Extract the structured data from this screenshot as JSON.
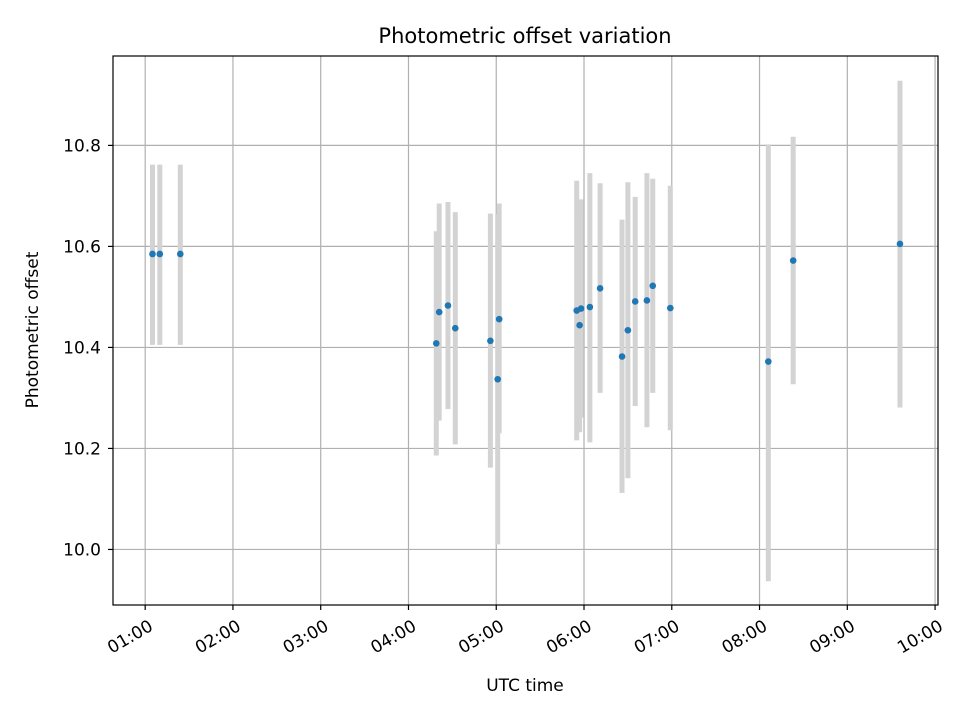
{
  "chart_data": {
    "type": "scatter",
    "title": "Photometric offset variation",
    "xlabel": "UTC time",
    "ylabel": "Photometric offset",
    "x_tick_labels": [
      "01:00",
      "02:00",
      "03:00",
      "04:00",
      "05:00",
      "06:00",
      "07:00",
      "08:00",
      "09:00",
      "10:00"
    ],
    "y_tick_labels": [
      "10.0",
      "10.2",
      "10.4",
      "10.6",
      "10.8"
    ],
    "x_ticks": [
      "01:00",
      "02:00",
      "03:00",
      "04:00",
      "05:00",
      "06:00",
      "07:00",
      "08:00",
      "09:00",
      "10:00"
    ],
    "y_ticks": [
      10.0,
      10.2,
      10.4,
      10.6,
      10.8
    ],
    "xlim": [
      "00:38",
      "10:02"
    ],
    "ylim": [
      9.89,
      10.977
    ],
    "grid": true,
    "marker_color": "#1f77b4",
    "errorbar_color": "#d3d3d3",
    "points": [
      {
        "x": "01:05",
        "y": 10.585,
        "low": 10.405,
        "high": 10.762
      },
      {
        "x": "01:10",
        "y": 10.585,
        "low": 10.405,
        "high": 10.762
      },
      {
        "x": "01:24",
        "y": 10.585,
        "low": 10.405,
        "high": 10.762
      },
      {
        "x": "04:19",
        "y": 10.408,
        "low": 10.186,
        "high": 10.63
      },
      {
        "x": "04:21",
        "y": 10.47,
        "low": 10.255,
        "high": 10.685
      },
      {
        "x": "04:27",
        "y": 10.483,
        "low": 10.278,
        "high": 10.688
      },
      {
        "x": "04:32",
        "y": 10.438,
        "low": 10.208,
        "high": 10.668
      },
      {
        "x": "04:56",
        "y": 10.413,
        "low": 10.162,
        "high": 10.665
      },
      {
        "x": "05:01",
        "y": 10.337,
        "low": 10.01,
        "high": 10.664
      },
      {
        "x": "05:02",
        "y": 10.456,
        "low": 10.23,
        "high": 10.685
      },
      {
        "x": "05:55",
        "y": 10.473,
        "low": 10.216,
        "high": 10.73
      },
      {
        "x": "05:57",
        "y": 10.444,
        "low": 10.232,
        "high": 10.657
      },
      {
        "x": "05:58",
        "y": 10.477,
        "low": 10.261,
        "high": 10.693
      },
      {
        "x": "06:04",
        "y": 10.48,
        "low": 10.212,
        "high": 10.745
      },
      {
        "x": "06:11",
        "y": 10.517,
        "low": 10.31,
        "high": 10.725
      },
      {
        "x": "06:26",
        "y": 10.382,
        "low": 10.112,
        "high": 10.653
      },
      {
        "x": "06:30",
        "y": 10.434,
        "low": 10.141,
        "high": 10.727
      },
      {
        "x": "06:35",
        "y": 10.491,
        "low": 10.284,
        "high": 10.698
      },
      {
        "x": "06:43",
        "y": 10.493,
        "low": 10.242,
        "high": 10.745
      },
      {
        "x": "06:47",
        "y": 10.522,
        "low": 10.31,
        "high": 10.734
      },
      {
        "x": "06:59",
        "y": 10.478,
        "low": 10.236,
        "high": 10.72
      },
      {
        "x": "08:06",
        "y": 10.372,
        "low": 9.937,
        "high": 10.802
      },
      {
        "x": "08:23",
        "y": 10.572,
        "low": 10.327,
        "high": 10.817
      },
      {
        "x": "09:36",
        "y": 10.605,
        "low": 10.281,
        "high": 10.928
      }
    ]
  }
}
